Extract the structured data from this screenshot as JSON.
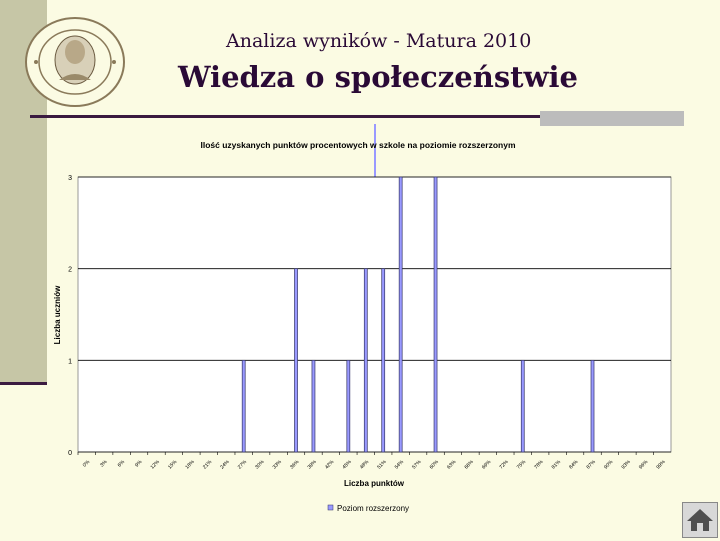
{
  "slide": {
    "title_line1": "Analiza wyników  - Matura 2010",
    "title_line2": "Wiedza o społeczeństwie"
  },
  "icons": {
    "logo": "school-seal-logo",
    "home": "home-icon"
  },
  "colors": {
    "background": "#fbfbe3",
    "title": "#2a0a36",
    "bar": "#9999ff",
    "bar_outline": "#333366"
  },
  "chart_data": {
    "type": "bar",
    "title": "Ilość uzyskanych punktów procentowych w szkole na poziomie rozszerzonym",
    "xlabel": "Liczba punktów",
    "ylabel": "Liczba uczniów",
    "ylim": [
      0,
      3
    ],
    "yticks": [
      "0",
      "1",
      "2",
      "3"
    ],
    "grid": true,
    "legend_position": "bottom",
    "categories": [
      "0%",
      "3%",
      "6%",
      "9%",
      "12%",
      "15%",
      "18%",
      "21%",
      "24%",
      "27%",
      "30%",
      "33%",
      "36%",
      "39%",
      "42%",
      "45%",
      "48%",
      "51%",
      "54%",
      "57%",
      "60%",
      "63%",
      "66%",
      "69%",
      "72%",
      "75%",
      "78%",
      "81%",
      "84%",
      "87%",
      "90%",
      "93%",
      "96%",
      "99%"
    ],
    "series": [
      {
        "name": "Poziom rozszerzony",
        "values": [
          0,
          0,
          0,
          0,
          0,
          0,
          0,
          0,
          0,
          1,
          0,
          0,
          2,
          1,
          0,
          1,
          2,
          2,
          3,
          0,
          3,
          0,
          0,
          0,
          0,
          1,
          0,
          0,
          0,
          1,
          0,
          0,
          0,
          0
        ]
      }
    ]
  }
}
